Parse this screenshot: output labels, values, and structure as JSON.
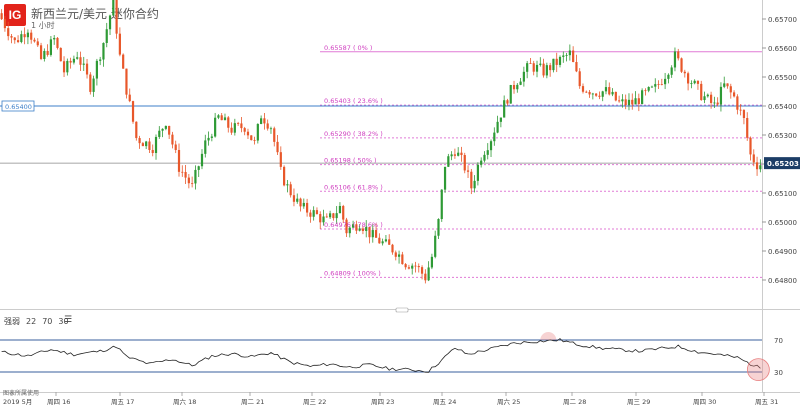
{
  "header": {
    "logo_text": "IG",
    "instrument_title": "新西兰元/美元 迷你合约",
    "interval": "1 小时"
  },
  "watermark": "图表所属使用",
  "indicator": {
    "name": "强弱",
    "params": [
      "22",
      "70",
      "30"
    ],
    "menu_icon": "hamburger-icon"
  },
  "price_axis": {
    "labels": [
      "0.65700",
      "0.65600",
      "0.65500",
      "0.65400",
      "0.65300",
      "0.65200",
      "0.65100",
      "0.65000",
      "0.64900",
      "0.64800"
    ],
    "current_price": "0.65203"
  },
  "crosshair_label": "0.65400",
  "fibonacci_levels": [
    {
      "label": "0.65587 ( 0% )",
      "price": 0.65587
    },
    {
      "label": "0.65403 ( 23.6% )",
      "price": 0.65403
    },
    {
      "label": "0.65290 ( 38.2% )",
      "price": 0.6529
    },
    {
      "label": "0.65198 ( 50% )",
      "price": 0.65198
    },
    {
      "label": "0.65106 ( 61.8% )",
      "price": 0.65106
    },
    {
      "label": "0.64976 ( 78.6% )",
      "price": 0.64976
    },
    {
      "label": "0.64809 ( 100% )",
      "price": 0.64809
    }
  ],
  "rsi_axis": {
    "labels": [
      "70",
      "30"
    ]
  },
  "time_axis": {
    "labels": [
      "2019 5月",
      "周四 16",
      "周五 17",
      "周六 18",
      "周二 21",
      "周三 22",
      "周四 23",
      "周五 24",
      "周六 25",
      "周二 28",
      "周三 29",
      "周四 30",
      "周五 31"
    ]
  },
  "chart_data": {
    "type": "candlestick",
    "instrument": "新西兰元/美元 迷你合约",
    "interval": "1 小时",
    "ylim": [
      0.6475,
      0.6575
    ],
    "current_price": 0.65203,
    "crosshair_price": 0.654,
    "fibonacci": [
      {
        "ratio": "0%",
        "price": 0.65587
      },
      {
        "ratio": "23.6%",
        "price": 0.65403
      },
      {
        "ratio": "38.2%",
        "price": 0.6529
      },
      {
        "ratio": "50%",
        "price": 0.65198
      },
      {
        "ratio": "61.8%",
        "price": 0.65106
      },
      {
        "ratio": "78.6%",
        "price": 0.64976
      },
      {
        "ratio": "100%",
        "price": 0.64809
      }
    ],
    "price_path": [
      [
        0,
        0.6572
      ],
      [
        5,
        0.6562
      ],
      [
        9,
        0.6567
      ],
      [
        13,
        0.6556
      ],
      [
        17,
        0.6563
      ],
      [
        20,
        0.6552
      ],
      [
        24,
        0.6558
      ],
      [
        28,
        0.6547
      ],
      [
        32,
        0.6562
      ],
      [
        35,
        0.6576
      ],
      [
        37,
        0.6557
      ],
      [
        42,
        0.6529
      ],
      [
        47,
        0.6526
      ],
      [
        51,
        0.6535
      ],
      [
        55,
        0.6519
      ],
      [
        59,
        0.6512
      ],
      [
        63,
        0.6527
      ],
      [
        67,
        0.6536
      ],
      [
        71,
        0.6532
      ],
      [
        75,
        0.6533
      ],
      [
        78,
        0.6527
      ],
      [
        80,
        0.6537
      ],
      [
        83,
        0.6533
      ],
      [
        86,
        0.6517
      ],
      [
        88,
        0.6512
      ],
      [
        92,
        0.6505
      ],
      [
        96,
        0.6503
      ],
      [
        100,
        0.65
      ],
      [
        104,
        0.6505
      ],
      [
        106,
        0.6497
      ],
      [
        110,
        0.65
      ],
      [
        114,
        0.6495
      ],
      [
        118,
        0.6492
      ],
      [
        121,
        0.649
      ],
      [
        124,
        0.6486
      ],
      [
        127,
        0.6485
      ],
      [
        130,
        0.6481
      ],
      [
        132,
        0.6488
      ],
      [
        134,
        0.65
      ],
      [
        136,
        0.652
      ],
      [
        139,
        0.6525
      ],
      [
        142,
        0.6519
      ],
      [
        144,
        0.6512
      ],
      [
        147,
        0.6523
      ],
      [
        150,
        0.6529
      ],
      [
        152,
        0.6535
      ],
      [
        155,
        0.6543
      ],
      [
        158,
        0.6549
      ],
      [
        162,
        0.6554
      ],
      [
        166,
        0.6552
      ],
      [
        170,
        0.6555
      ],
      [
        174,
        0.6558
      ],
      [
        177,
        0.6547
      ],
      [
        181,
        0.6545
      ],
      [
        185,
        0.6545
      ],
      [
        189,
        0.6541
      ],
      [
        193,
        0.6541
      ],
      [
        197,
        0.6544
      ],
      [
        200,
        0.6546
      ],
      [
        203,
        0.6551
      ],
      [
        206,
        0.6557
      ],
      [
        210,
        0.655
      ],
      [
        214,
        0.6544
      ],
      [
        218,
        0.654
      ],
      [
        221,
        0.6547
      ],
      [
        224,
        0.6543
      ],
      [
        227,
        0.6535
      ],
      [
        229,
        0.6523
      ],
      [
        231,
        0.652
      ]
    ],
    "rsi": {
      "period": 22,
      "upper": 70,
      "lower": 30,
      "path": [
        [
          0,
          55
        ],
        [
          8,
          50
        ],
        [
          15,
          58
        ],
        [
          22,
          52
        ],
        [
          30,
          56
        ],
        [
          35,
          62
        ],
        [
          38,
          49
        ],
        [
          45,
          40
        ],
        [
          52,
          46
        ],
        [
          58,
          38
        ],
        [
          64,
          50
        ],
        [
          70,
          53
        ],
        [
          76,
          49
        ],
        [
          82,
          54
        ],
        [
          88,
          42
        ],
        [
          94,
          37
        ],
        [
          100,
          40
        ],
        [
          106,
          36
        ],
        [
          112,
          39
        ],
        [
          118,
          34
        ],
        [
          124,
          33
        ],
        [
          130,
          31
        ],
        [
          134,
          45
        ],
        [
          138,
          60
        ],
        [
          142,
          52
        ],
        [
          146,
          56
        ],
        [
          150,
          60
        ],
        [
          156,
          66
        ],
        [
          162,
          68
        ],
        [
          170,
          70
        ],
        [
          176,
          64
        ],
        [
          182,
          60
        ],
        [
          188,
          58
        ],
        [
          194,
          56
        ],
        [
          200,
          59
        ],
        [
          206,
          62
        ],
        [
          212,
          55
        ],
        [
          218,
          52
        ],
        [
          224,
          48
        ],
        [
          228,
          40
        ],
        [
          231,
          35
        ]
      ]
    },
    "time_labels": [
      "2019 5月",
      "周四 16",
      "周五 17",
      "周六 18",
      "周二 21",
      "周三 22",
      "周四 23",
      "周五 24",
      "周六 25",
      "周二 28",
      "周三 29",
      "周四 30",
      "周五 31"
    ]
  },
  "colors": {
    "up": "#2e9a35",
    "down": "#e8572a",
    "fib_solid": "#e07ad6",
    "fib_dotted": "#e07ad6",
    "fib_text": "#d040c0",
    "crosshair": "#3c7fc8",
    "current_line": "#888888",
    "current_tag_bg": "#1c3d66",
    "rsi_line": "#222222",
    "rsi_bound": "#3a5f9e",
    "rsi_circle": "#e88080"
  }
}
